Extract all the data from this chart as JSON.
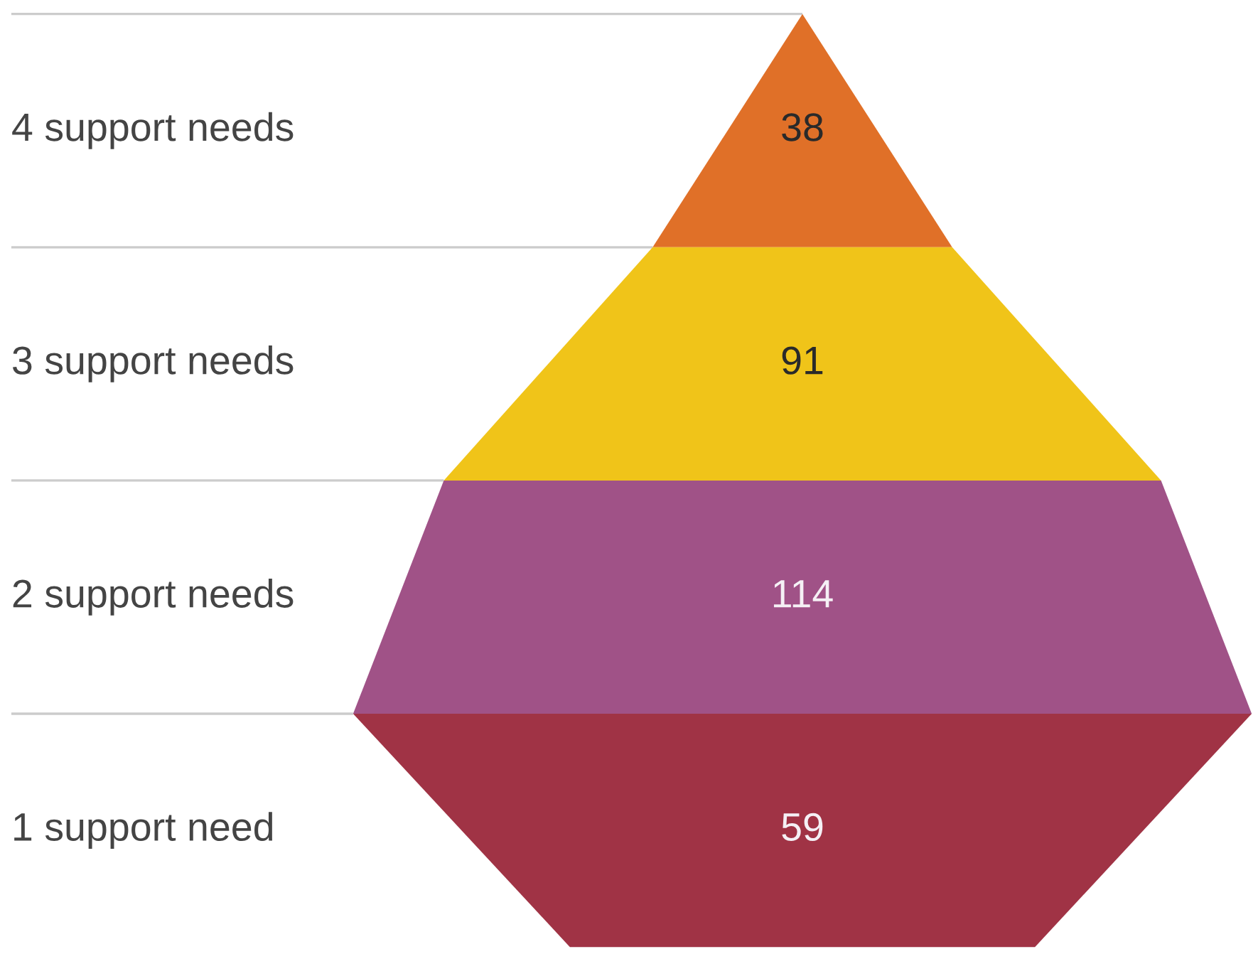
{
  "chart_data": {
    "type": "other",
    "categories": [
      "4 support needs",
      "3 support needs",
      "2 support needs",
      "1 support need"
    ],
    "values": [
      38,
      91,
      114,
      59
    ],
    "colors": [
      "#e07028",
      "#f0c419",
      "#a05287",
      "#a03345"
    ],
    "data_labels": true
  }
}
